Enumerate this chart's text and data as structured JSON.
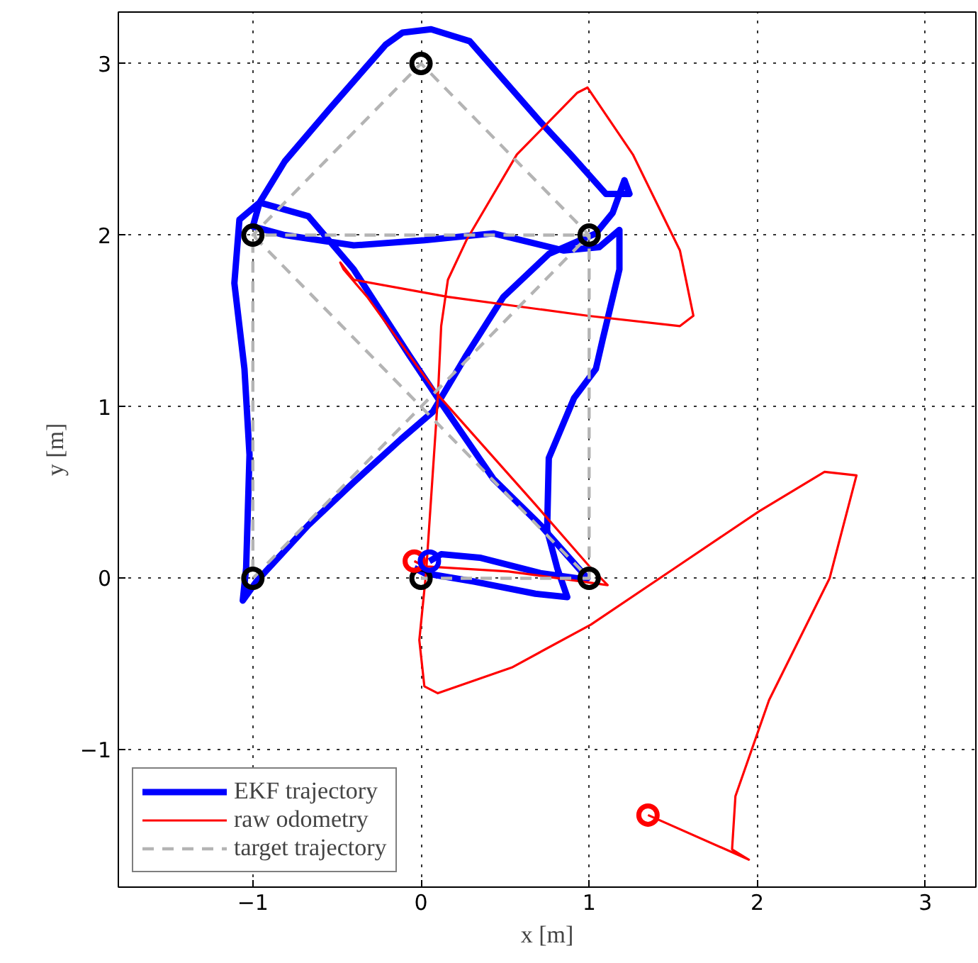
{
  "chart_data": {
    "type": "line",
    "xlabel": "x [m]",
    "ylabel": "y [m]",
    "xlim": [
      -1.8,
      3.3
    ],
    "ylim": [
      -1.8,
      3.3
    ],
    "xticks": [
      -1,
      0,
      1,
      2,
      3
    ],
    "yticks": [
      -1,
      0,
      1,
      2,
      3
    ],
    "grid": true,
    "legend": "bottom left",
    "series": [
      {
        "name": "EKF trajectory",
        "color": "#0000ff",
        "line_style": "solid",
        "x": [
          0.05,
          0.12,
          0.35,
          0.71,
          0.93,
          0.99,
          0.71,
          0.43,
          0.1,
          -0.07,
          -0.4,
          -0.67,
          -0.96,
          -1.08,
          -1.11,
          -1.05,
          -1.02,
          -1.04,
          -1.06,
          -0.98,
          -0.67,
          -0.4,
          -0.12,
          0.07,
          0.27,
          0.49,
          0.76,
          1.04,
          1.14,
          1.21,
          1.24,
          1.1,
          0.89,
          0.71,
          0.29,
          0.06,
          -0.11,
          -0.21,
          -0.54,
          -0.81,
          -0.96,
          -1.0,
          -0.81,
          -0.4,
          0.02,
          0.43,
          0.85,
          1.06,
          1.18,
          1.18,
          1.08,
          1.04,
          0.91,
          0.76,
          0.75,
          0.81,
          0.87,
          0.68,
          0.32,
          0.02,
          -0.04
        ],
        "values": [
          0.1,
          0.14,
          0.12,
          0.03,
          0.0,
          0.0,
          0.31,
          0.58,
          1.05,
          1.3,
          1.8,
          2.11,
          2.19,
          2.09,
          1.72,
          1.22,
          0.72,
          0.06,
          -0.13,
          -0.02,
          0.31,
          0.56,
          0.81,
          0.97,
          1.3,
          1.64,
          1.89,
          2.01,
          2.13,
          2.32,
          2.24,
          2.24,
          2.47,
          2.66,
          3.13,
          3.2,
          3.18,
          3.11,
          2.74,
          2.43,
          2.19,
          2.05,
          2.0,
          1.94,
          1.97,
          2.01,
          1.91,
          1.93,
          2.03,
          1.8,
          1.39,
          1.22,
          1.05,
          0.7,
          0.28,
          0.06,
          -0.11,
          -0.09,
          -0.02,
          0.03,
          0.06
        ]
      },
      {
        "name": "raw odometry",
        "color": "#ff0000",
        "line_style": "solid",
        "x": [
          -0.04,
          0.02,
          0.52,
          1.11,
          1.01,
          0.68,
          0.1,
          -0.07,
          -0.32,
          -0.46,
          -0.48,
          -0.4,
          0.16,
          0.99,
          1.54,
          1.62,
          1.54,
          1.26,
          0.99,
          0.93,
          0.57,
          0.27,
          0.16,
          0.12,
          0.1,
          0.03,
          -0.01,
          0.02,
          0.1,
          0.54,
          1.01,
          1.51,
          2.01,
          2.4,
          2.59,
          2.43,
          2.07,
          1.87,
          1.85,
          1.95,
          1.35
        ],
        "values": [
          0.1,
          0.07,
          0.04,
          -0.04,
          0.06,
          0.43,
          1.07,
          1.3,
          1.64,
          1.8,
          1.84,
          1.74,
          1.64,
          1.53,
          1.47,
          1.53,
          1.91,
          2.47,
          2.86,
          2.83,
          2.47,
          1.97,
          1.74,
          1.47,
          1.05,
          0.03,
          -0.36,
          -0.63,
          -0.67,
          -0.52,
          -0.27,
          0.06,
          0.39,
          0.62,
          0.6,
          0.0,
          -0.71,
          -1.27,
          -1.58,
          -1.64,
          -1.38
        ]
      },
      {
        "name": "target trajectory",
        "color": "#b4b4b4",
        "line_style": "dashed",
        "x": [
          0,
          1,
          -1,
          -1,
          1,
          0,
          -1,
          1,
          1
        ],
        "values": [
          0,
          0,
          2,
          0,
          2,
          3,
          2,
          2,
          0
        ]
      },
      {
        "color": "#000000",
        "type": "scatter",
        "marker": "circle",
        "x": [
          0,
          1,
          -1,
          -1,
          1,
          0
        ],
        "values": [
          0,
          0,
          0,
          2,
          2,
          3
        ]
      },
      {
        "color": "#ff0000",
        "type": "scatter",
        "marker": "circle",
        "x": [
          -0.04,
          1.35
        ],
        "values": [
          0.1,
          -1.38
        ]
      },
      {
        "color": "#0000ff",
        "type": "scatter",
        "marker": "circle",
        "x": [
          0.05
        ],
        "values": [
          0.1
        ]
      }
    ]
  }
}
